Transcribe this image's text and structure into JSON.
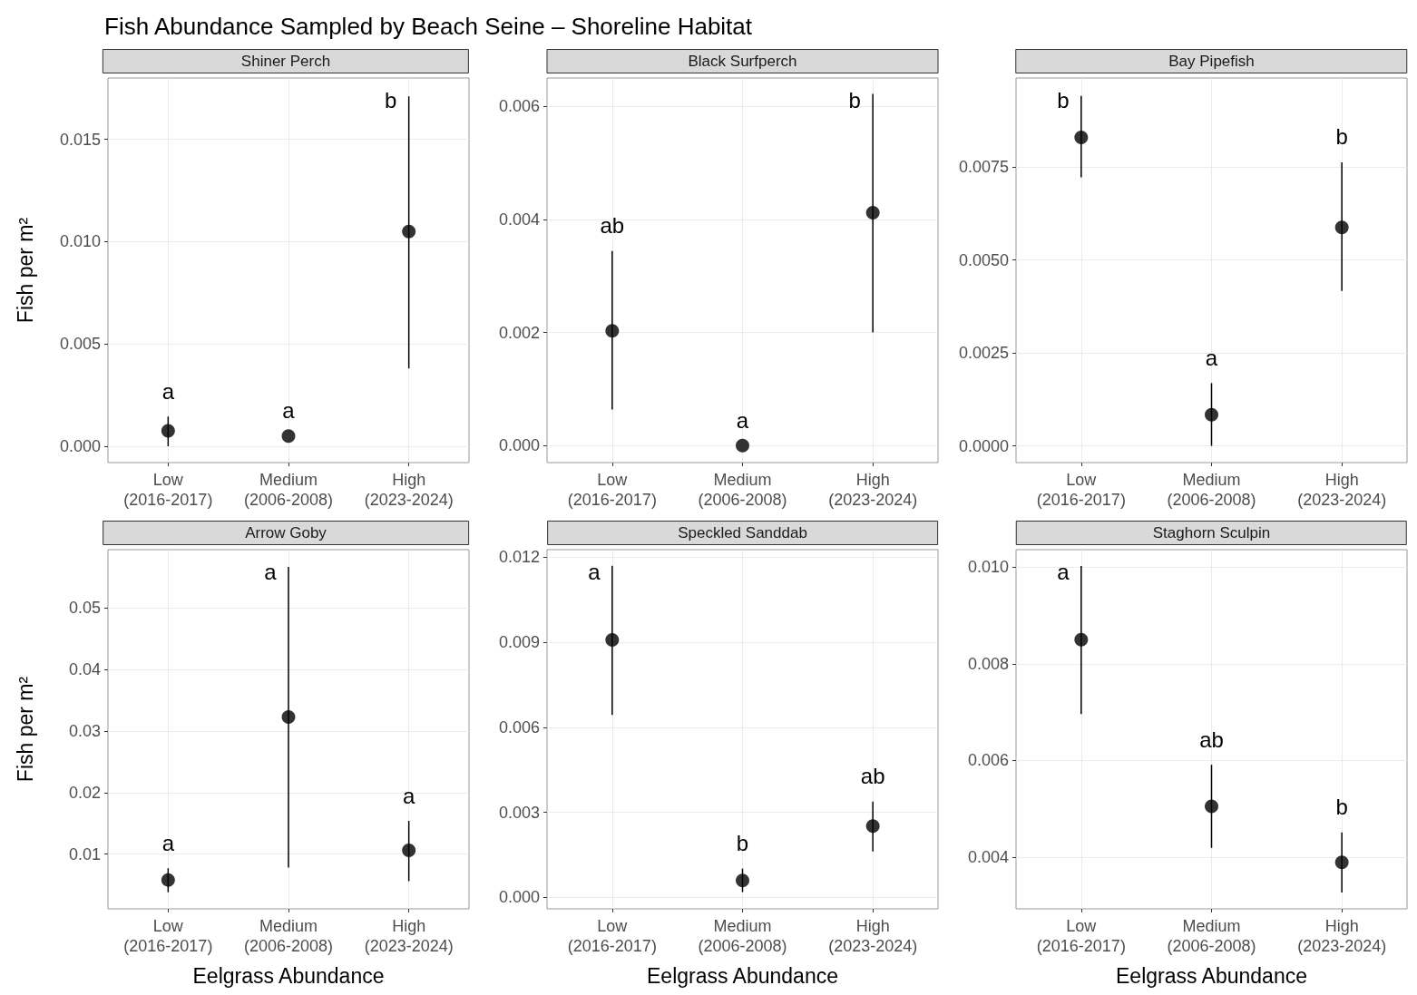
{
  "chart_data": [
    {
      "type": "other",
      "title": "Fish Abundance Sampled by Beach Seine – Shoreline Habitat"
    },
    {
      "type": "scatter",
      "title": "Shiner Perch",
      "ylabel": "Fish per m²",
      "categories": [
        "Low\n(2016-2017)",
        "Medium\n(2006-2008)",
        "High\n(2023-2024)"
      ],
      "values": [
        0.00075,
        0.0005,
        0.0105
      ],
      "errors": [
        [
          0,
          0.00145
        ],
        null,
        [
          0.0038,
          0.0171
        ]
      ],
      "color": "#000000",
      "marker": "circle",
      "grid": true,
      "ylim": [
        -0.0008,
        0.018
      ],
      "yticks": [
        {
          "value": 0,
          "label": "0.000"
        },
        {
          "value": 0.005,
          "label": "0.005"
        },
        {
          "value": 0.01,
          "label": "0.010"
        },
        {
          "value": 0.015,
          "label": "0.015"
        }
      ],
      "annotations": [
        "a",
        "a",
        "b"
      ]
    },
    {
      "type": "scatter",
      "title": "Black Surfperch",
      "categories": [
        "Low\n(2016-2017)",
        "Medium\n(2006-2008)",
        "High\n(2023-2024)"
      ],
      "values": [
        0.00203,
        0,
        0.00412
      ],
      "errors": [
        [
          0.00064,
          0.00344
        ],
        null,
        [
          0.002,
          0.00622
        ]
      ],
      "color": "#000000",
      "marker": "circle",
      "grid": true,
      "ylim": [
        -0.0003,
        0.0065
      ],
      "yticks": [
        {
          "value": 0,
          "label": "0.000"
        },
        {
          "value": 0.002,
          "label": "0.002"
        },
        {
          "value": 0.004,
          "label": "0.004"
        },
        {
          "value": 0.006,
          "label": "0.006"
        }
      ],
      "annotations": [
        "ab",
        "a",
        "b"
      ]
    },
    {
      "type": "scatter",
      "title": "Bay Pipefish",
      "categories": [
        "Low\n(2016-2017)",
        "Medium\n(2006-2008)",
        "High\n(2023-2024)"
      ],
      "values": [
        0.0083,
        0.00084,
        0.00588
      ],
      "errors": [
        [
          0.00723,
          0.00942
        ],
        [
          0,
          0.00169
        ],
        [
          0.00417,
          0.00763
        ]
      ],
      "color": "#000000",
      "marker": "circle",
      "grid": true,
      "ylim": [
        -0.00045,
        0.0099
      ],
      "yticks": [
        {
          "value": 0,
          "label": "0.0000"
        },
        {
          "value": 0.0025,
          "label": "0.0025"
        },
        {
          "value": 0.005,
          "label": "0.0050"
        },
        {
          "value": 0.0075,
          "label": "0.0075"
        }
      ],
      "annotations": [
        "b",
        "a",
        "b"
      ]
    },
    {
      "type": "scatter",
      "title": "Arrow Goby",
      "ylabel": "Fish per m²",
      "xlabel": "Eelgrass Abundance",
      "categories": [
        "Low\n(2016-2017)",
        "Medium\n(2006-2008)",
        "High\n(2023-2024)"
      ],
      "values": [
        0.0058,
        0.0323,
        0.0106
      ],
      "errors": [
        [
          0.0038,
          0.0077
        ],
        [
          0.0078,
          0.0567
        ],
        [
          0.0056,
          0.0154
        ]
      ],
      "color": "#000000",
      "marker": "circle",
      "grid": true,
      "ylim": [
        0.0011,
        0.0595
      ],
      "yticks": [
        0.01,
        0.02,
        0.03,
        0.04,
        0.05
      ],
      "annotations": [
        "a",
        "a",
        "a"
      ]
    },
    {
      "type": "scatter",
      "title": "Speckled Sanddab",
      "xlabel": "Eelgrass Abundance",
      "categories": [
        "Low\n(2016-2017)",
        "Medium\n(2006-2008)",
        "High\n(2023-2024)"
      ],
      "values": [
        0.00908,
        0.0006,
        0.00252
      ],
      "errors": [
        [
          0.00643,
          0.01169
        ],
        [
          0.00019,
          0.00102
        ],
        [
          0.00162,
          0.00338
        ]
      ],
      "color": "#000000",
      "marker": "circle",
      "grid": true,
      "ylim": [
        -0.0004,
        0.01226
      ],
      "yticks": [
        {
          "value": 0,
          "label": "0.000"
        },
        {
          "value": 0.003,
          "label": "0.003"
        },
        {
          "value": 0.006,
          "label": "0.006"
        },
        {
          "value": 0.009,
          "label": "0.009"
        },
        {
          "value": 0.012,
          "label": "0.012"
        }
      ],
      "annotations": [
        "a",
        "b",
        "ab"
      ]
    },
    {
      "type": "scatter",
      "title": "Staghorn Sculpin",
      "xlabel": "Eelgrass Abundance",
      "categories": [
        "Low\n(2016-2017)",
        "Medium\n(2006-2008)",
        "High\n(2023-2024)"
      ],
      "values": [
        0.0085,
        0.00505,
        0.00389
      ],
      "errors": [
        [
          0.00696,
          0.01002
        ],
        [
          0.00419,
          0.00591
        ],
        [
          0.00327,
          0.00451
        ]
      ],
      "color": "#000000",
      "marker": "circle",
      "grid": true,
      "ylim": [
        0.00293,
        0.01036
      ],
      "yticks": [
        {
          "value": 0.004,
          "label": "0.004"
        },
        {
          "value": 0.006,
          "label": "0.006"
        },
        {
          "value": 0.008,
          "label": "0.008"
        },
        {
          "value": 0.01,
          "label": "0.010"
        }
      ],
      "annotations": [
        "a",
        "ab",
        "b"
      ]
    }
  ]
}
